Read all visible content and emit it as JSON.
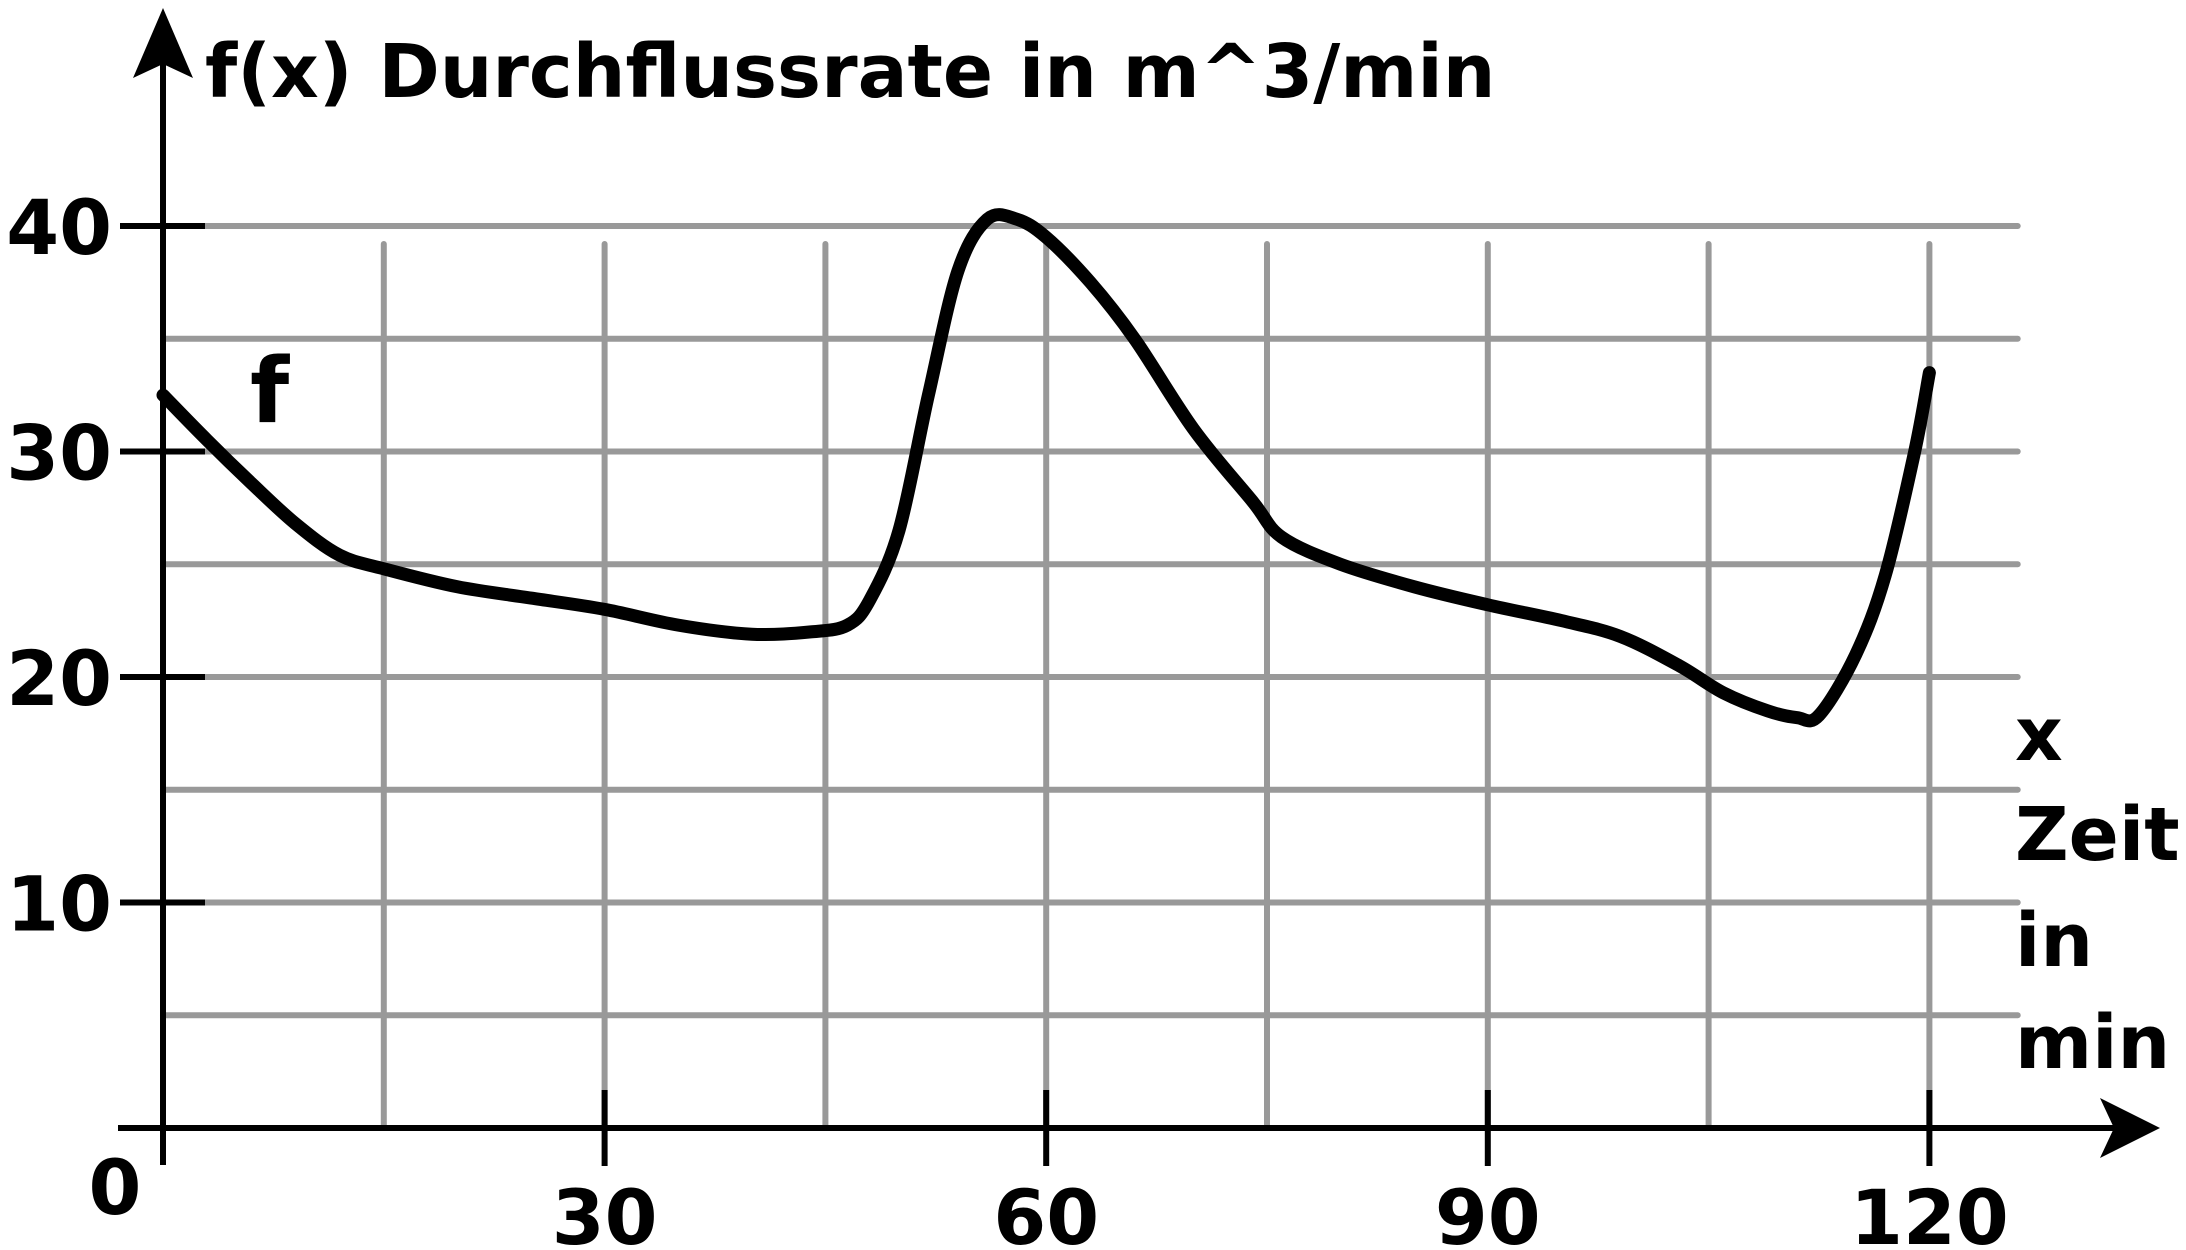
{
  "chart_data": {
    "type": "line",
    "title": "",
    "ylabel": "f(x) Durchflussrate in m^3/min",
    "xlabel_lines": [
      "x",
      "Zeit",
      "in",
      "min"
    ],
    "xlim": [
      0,
      124
    ],
    "ylim": [
      0,
      44
    ],
    "x_ticks": [
      30,
      60,
      90,
      120
    ],
    "x_tick_labels": [
      "30",
      "60",
      "90",
      "120"
    ],
    "y_ticks": [
      10,
      20,
      30,
      40
    ],
    "y_tick_labels": [
      "10",
      "20",
      "30",
      "40"
    ],
    "origin_label": "0",
    "grid": true,
    "grid_x_step": 15,
    "grid_y_step": 5,
    "series": [
      {
        "name": "f",
        "x": [
          0,
          3,
          6,
          9,
          12,
          15,
          20,
          25,
          30,
          35,
          40,
          44,
          46.5,
          48,
          50,
          52,
          54,
          56,
          58,
          60,
          63,
          66,
          70,
          74,
          76,
          80,
          85,
          90,
          95,
          99,
          103,
          106,
          109,
          111,
          112.5,
          115,
          117,
          119,
          120
        ],
        "y": [
          32.5,
          30.5,
          28.6,
          26.8,
          25.4,
          24.8,
          24.0,
          23.5,
          23.0,
          22.3,
          21.9,
          22.0,
          22.3,
          23.4,
          26.5,
          32.5,
          38.0,
          40.3,
          40.3,
          39.5,
          37.5,
          35.0,
          31.0,
          27.8,
          26.2,
          25.0,
          24.0,
          23.2,
          22.5,
          21.8,
          20.5,
          19.3,
          18.5,
          18.2,
          18.3,
          21.0,
          24.5,
          30.0,
          33.5
        ]
      }
    ],
    "colors": {
      "curve": "#000000",
      "axis": "#000000",
      "grid": "#999999"
    }
  }
}
